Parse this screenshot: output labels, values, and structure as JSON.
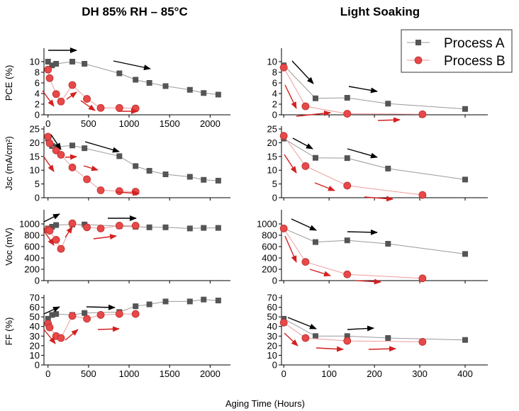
{
  "figure": {
    "xlabel": "Aging Time (Hours)",
    "columns": [
      "DH 85% RH – 85°C",
      "Light Soaking"
    ],
    "legend": [
      "Process A",
      "Process B"
    ],
    "legend_position": "top-right"
  },
  "colors": {
    "a": "#555555",
    "b": "#e84848",
    "arrow_a": "#000000",
    "arrow_b": "#d42020"
  },
  "chart_data": [
    {
      "type": "line",
      "column": "DH 85% RH – 85°C",
      "ylabel": "PCE (%)",
      "xlim": [
        -50,
        2250
      ],
      "ylim": [
        0,
        12
      ],
      "xticks": [
        "0",
        "500",
        "1000",
        "1500",
        "2000"
      ],
      "yticks": [
        "0",
        "2",
        "4",
        "6",
        "8",
        "10"
      ],
      "series": [
        {
          "name": "Process A",
          "x": [
            0,
            50,
            100,
            300,
            450,
            880,
            1080,
            1250,
            1450,
            1750,
            1920,
            2100
          ],
          "y": [
            10.0,
            9.3,
            9.6,
            10.0,
            9.6,
            7.8,
            6.6,
            6.0,
            5.4,
            4.7,
            4.1,
            3.8
          ]
        },
        {
          "name": "Process B",
          "x": [
            0,
            20,
            100,
            160,
            300,
            480,
            650,
            880,
            1080
          ],
          "y": [
            8.5,
            6.9,
            3.9,
            2.5,
            5.6,
            3.0,
            1.3,
            1.3,
            1.2
          ]
        }
      ]
    },
    {
      "type": "line",
      "column": "Light Soaking",
      "ylabel": "PCE (%)",
      "xlim": [
        -5,
        450
      ],
      "ylim": [
        0,
        12
      ],
      "xticks": [],
      "yticks": [
        "0",
        "2",
        "4",
        "6",
        "8",
        "10"
      ],
      "series": [
        {
          "name": "Process A",
          "x": [
            0,
            70,
            140,
            230,
            400
          ],
          "y": [
            9.3,
            3.1,
            3.2,
            2.1,
            1.1
          ]
        },
        {
          "name": "Process B",
          "x": [
            0,
            48,
            140,
            306
          ],
          "y": [
            8.9,
            1.6,
            0.2,
            0.1
          ]
        }
      ]
    },
    {
      "type": "line",
      "column": "DH 85% RH – 85°C",
      "ylabel": "Jsc (mA/cm²)",
      "xlim": [
        -50,
        2250
      ],
      "ylim": [
        0,
        25
      ],
      "xticks": [],
      "yticks": [
        "0",
        "5",
        "10",
        "15",
        "20",
        "25"
      ],
      "series": [
        {
          "name": "Process A",
          "x": [
            0,
            50,
            100,
            300,
            450,
            880,
            1080,
            1250,
            1450,
            1750,
            1920,
            2100
          ],
          "y": [
            21.5,
            18.8,
            18.5,
            19.0,
            18.0,
            15.1,
            11.5,
            9.8,
            8.5,
            7.6,
            6.5,
            6.2
          ]
        },
        {
          "name": "Process B",
          "x": [
            0,
            20,
            100,
            160,
            300,
            480,
            650,
            880,
            1080
          ],
          "y": [
            22.2,
            19.8,
            17.2,
            15.6,
            11.0,
            6.7,
            2.7,
            2.4,
            2.2
          ]
        }
      ]
    },
    {
      "type": "line",
      "column": "Light Soaking",
      "ylabel": "Jsc (mA/cm²)",
      "xlim": [
        -5,
        450
      ],
      "ylim": [
        0,
        25
      ],
      "xticks": [],
      "yticks": [
        "0",
        "5",
        "10",
        "15",
        "20",
        "25"
      ],
      "series": [
        {
          "name": "Process A",
          "x": [
            0,
            70,
            140,
            230,
            400
          ],
          "y": [
            21.5,
            14.5,
            14.4,
            10.6,
            6.6
          ]
        },
        {
          "name": "Process B",
          "x": [
            0,
            48,
            140,
            306
          ],
          "y": [
            22.5,
            11.5,
            4.4,
            1.0
          ]
        }
      ]
    },
    {
      "type": "line",
      "column": "DH 85% RH – 85°C",
      "ylabel": "Voc (mV)",
      "xlim": [
        -50,
        2250
      ],
      "ylim": [
        0,
        1200
      ],
      "xticks": [],
      "yticks": [
        "0",
        "200",
        "400",
        "600",
        "800",
        "1000"
      ],
      "series": [
        {
          "name": "Process A",
          "x": [
            0,
            50,
            100,
            300,
            450,
            880,
            1080,
            1250,
            1450,
            1750,
            1920,
            2100
          ],
          "y": [
            920,
            950,
            980,
            990,
            990,
            960,
            950,
            940,
            940,
            920,
            930,
            930
          ]
        },
        {
          "name": "Process B",
          "x": [
            0,
            20,
            100,
            160,
            300,
            480,
            650,
            880,
            1080
          ],
          "y": [
            900,
            880,
            720,
            560,
            1010,
            940,
            920,
            970,
            970
          ]
        }
      ]
    },
    {
      "type": "line",
      "column": "Light Soaking",
      "ylabel": "Voc (mV)",
      "xlim": [
        -5,
        450
      ],
      "ylim": [
        0,
        1200
      ],
      "xticks": [],
      "yticks": [
        "0",
        "200",
        "400",
        "600",
        "800",
        "1000"
      ],
      "series": [
        {
          "name": "Process A",
          "x": [
            0,
            70,
            140,
            230,
            400
          ],
          "y": [
            920,
            680,
            710,
            650,
            470
          ]
        },
        {
          "name": "Process B",
          "x": [
            0,
            48,
            140,
            306
          ],
          "y": [
            920,
            330,
            110,
            40
          ]
        }
      ]
    },
    {
      "type": "line",
      "column": "DH 85% RH – 85°C",
      "ylabel": "FF (%)",
      "xlim": [
        -50,
        2250
      ],
      "ylim": [
        0,
        70
      ],
      "xticks": [
        "0",
        "500",
        "1000",
        "1500",
        "2000"
      ],
      "yticks": [
        "0",
        "10",
        "20",
        "30",
        "40",
        "50",
        "60",
        "70"
      ],
      "series": [
        {
          "name": "Process A",
          "x": [
            0,
            50,
            100,
            300,
            450,
            880,
            1080,
            1250,
            1450,
            1750,
            1920,
            2100
          ],
          "y": [
            48,
            52,
            53,
            52,
            54,
            55,
            61,
            63,
            66,
            66,
            68,
            67
          ]
        },
        {
          "name": "Process B",
          "x": [
            0,
            20,
            100,
            160,
            300,
            480,
            650,
            880,
            1080
          ],
          "y": [
            43,
            39,
            30,
            28,
            51,
            48,
            52,
            53,
            53
          ]
        }
      ]
    },
    {
      "type": "line",
      "column": "Light Soaking",
      "ylabel": "FF (%)",
      "xlim": [
        -5,
        450
      ],
      "ylim": [
        0,
        70
      ],
      "xticks": [
        "0",
        "100",
        "200",
        "300",
        "400"
      ],
      "yticks": [
        "0",
        "10",
        "20",
        "30",
        "40",
        "50",
        "60",
        "70"
      ],
      "series": [
        {
          "name": "Process A",
          "x": [
            0,
            70,
            140,
            230,
            400
          ],
          "y": [
            48,
            30,
            30,
            28,
            26
          ]
        },
        {
          "name": "Process B",
          "x": [
            0,
            48,
            140,
            306
          ],
          "y": [
            44,
            28,
            25,
            24
          ]
        }
      ]
    }
  ]
}
